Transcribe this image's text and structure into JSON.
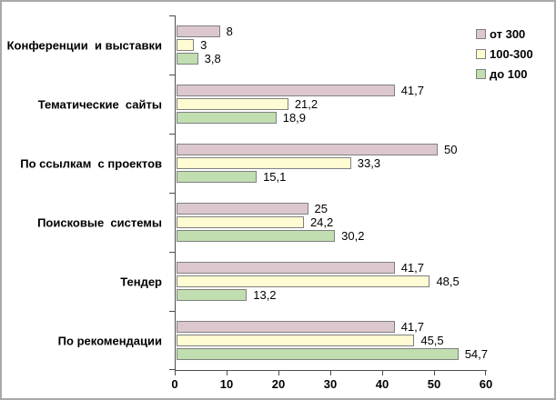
{
  "chart_data": {
    "type": "bar",
    "orientation": "horizontal",
    "title": "",
    "xlabel": "",
    "ylabel": "",
    "xlim": [
      0,
      60
    ],
    "x_ticks": [
      "0",
      "10",
      "20",
      "30",
      "40",
      "50",
      "60"
    ],
    "grid": false,
    "legend_position": "top-right",
    "categories": [
      "Конференции  и выставки",
      "Тематические  сайты",
      "По ссылкам  с проектов",
      "Поисковые  системы",
      "Тендер",
      "По рекомендации"
    ],
    "series": [
      {
        "name": "от 300",
        "color": "#dbc7cd",
        "values": [
          8,
          41.7,
          50,
          25,
          41.7,
          41.7
        ],
        "labels": [
          "8",
          "41,7",
          "50",
          "25",
          "41,7",
          "41,7"
        ]
      },
      {
        "name": "100-300",
        "color": "#fffbd2",
        "values": [
          3,
          21.2,
          33.3,
          24.2,
          48.5,
          45.5
        ],
        "labels": [
          "3",
          "21,2",
          "33,3",
          "24,2",
          "48,5",
          "45,5"
        ]
      },
      {
        "name": "до 100",
        "color": "#c0deb0",
        "values": [
          3.8,
          18.9,
          15.1,
          30.2,
          13.2,
          54.7
        ],
        "labels": [
          "3,8",
          "18,9",
          "15,1",
          "30,2",
          "13,2",
          "54,7"
        ]
      }
    ],
    "colors": {
      "bar_border": "#808080",
      "axis_line": "#4d4d4d",
      "text": "#000000",
      "background": "#ffffff",
      "frame_border": "#a9a9a9"
    }
  }
}
